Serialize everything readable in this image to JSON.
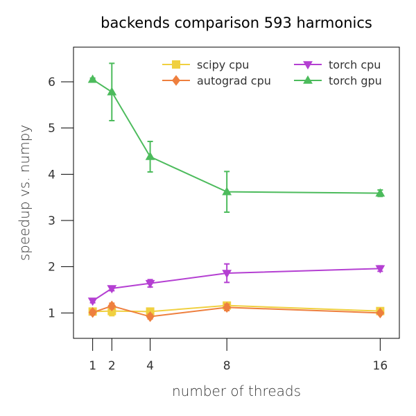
{
  "chart_data": {
    "type": "line",
    "title": "backends comparison 593 harmonics",
    "xlabel": "number of threads",
    "ylabel": "speedup vs. numpy",
    "x": [
      1,
      2,
      4,
      8,
      16
    ],
    "x_tick_labels": [
      "1",
      "2",
      "4",
      "8",
      "16"
    ],
    "xlim": [
      0,
      17
    ],
    "ylim": [
      0.45,
      6.75
    ],
    "y_ticks": [
      1,
      2,
      3,
      4,
      5,
      6
    ],
    "y_tick_labels": [
      "1",
      "2",
      "3",
      "4",
      "5",
      "6"
    ],
    "grid": false,
    "legend_position": "top-right",
    "series": [
      {
        "name": "scipy cpu",
        "color": "#f0d040",
        "marker": "square",
        "values": [
          1.03,
          1.04,
          1.03,
          1.16,
          1.04
        ],
        "err": [
          0.05,
          0.1,
          0.05,
          0.05,
          0.03
        ]
      },
      {
        "name": "autograd cpu",
        "color": "#ee7f3e",
        "marker": "diamond",
        "values": [
          1.01,
          1.15,
          0.92,
          1.12,
          1.0
        ],
        "err": [
          0.05,
          0.06,
          0.05,
          0.07,
          0.03
        ]
      },
      {
        "name": "torch cpu",
        "color": "#b43fd2",
        "marker": "triangle-down",
        "values": [
          1.26,
          1.53,
          1.64,
          1.86,
          1.96
        ],
        "err": [
          0.04,
          0.05,
          0.08,
          0.2,
          0.06
        ]
      },
      {
        "name": "torch gpu",
        "color": "#4cbb5c",
        "marker": "triangle-up",
        "values": [
          6.05,
          5.78,
          4.38,
          3.62,
          3.59
        ],
        "err": [
          0.03,
          0.62,
          0.33,
          0.44,
          0.07
        ]
      }
    ]
  }
}
